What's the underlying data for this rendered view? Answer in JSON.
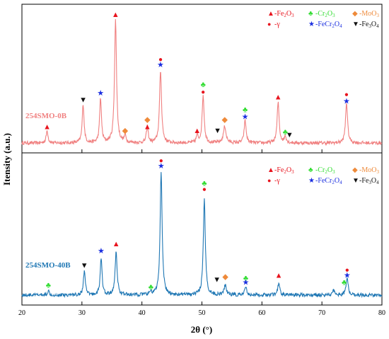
{
  "chart_data": [
    {
      "type": "line",
      "panel": "top",
      "sample_label": "254SMO-0B",
      "color": "#f08080",
      "xlim": [
        20,
        80
      ],
      "x_ticks": [
        20,
        30,
        40,
        50,
        60,
        70,
        80
      ],
      "xlabel": "2θ (°)",
      "ylabel": "Itensity (a.u.)",
      "baseline": 0.04,
      "noise": 0.012,
      "peaks": [
        {
          "x": 24.2,
          "height": 0.09,
          "width": 0.18
        },
        {
          "x": 30.2,
          "height": 0.28,
          "width": 0.18
        },
        {
          "x": 33.1,
          "height": 0.32,
          "width": 0.18
        },
        {
          "x": 35.6,
          "height": 0.88,
          "width": 0.2
        },
        {
          "x": 37.2,
          "height": 0.05,
          "width": 0.18
        },
        {
          "x": 40.9,
          "height": 0.12,
          "width": 0.18
        },
        {
          "x": 43.1,
          "height": 0.52,
          "width": 0.2
        },
        {
          "x": 49.2,
          "height": 0.05,
          "width": 0.18
        },
        {
          "x": 50.2,
          "height": 0.34,
          "width": 0.2
        },
        {
          "x": 53.8,
          "height": 0.12,
          "width": 0.25
        },
        {
          "x": 57.2,
          "height": 0.16,
          "width": 0.2
        },
        {
          "x": 62.7,
          "height": 0.29,
          "width": 0.2
        },
        {
          "x": 63.9,
          "height": 0.05,
          "width": 0.18
        },
        {
          "x": 74.1,
          "height": 0.29,
          "width": 0.2
        }
      ],
      "markers": [
        {
          "type": "fe2o3",
          "x": 24.2,
          "y": 0.14
        },
        {
          "type": "fe3o4",
          "x": 30.2,
          "y": 0.33
        },
        {
          "type": "fecr2o4",
          "x": 33.1,
          "y": 0.38
        },
        {
          "type": "fe2o3",
          "x": 35.6,
          "y": 0.94
        },
        {
          "type": "moo3",
          "x": 37.2,
          "y": 0.11
        },
        {
          "type": "moo3",
          "x": 40.9,
          "y": 0.19
        },
        {
          "type": "fe2o3",
          "x": 40.9,
          "y": 0.14
        },
        {
          "type": "gamma",
          "x": 43.1,
          "y": 0.62
        },
        {
          "type": "fecr2o4",
          "x": 43.1,
          "y": 0.58
        },
        {
          "type": "fe2o3",
          "x": 49.2,
          "y": 0.11
        },
        {
          "type": "cr2o3",
          "x": 50.2,
          "y": 0.44
        },
        {
          "type": "gamma",
          "x": 50.2,
          "y": 0.39
        },
        {
          "type": "fe3o4",
          "x": 52.6,
          "y": 0.11
        },
        {
          "type": "moo3",
          "x": 53.8,
          "y": 0.19
        },
        {
          "type": "cr2o3",
          "x": 57.2,
          "y": 0.26
        },
        {
          "type": "fecr2o4",
          "x": 57.2,
          "y": 0.21
        },
        {
          "type": "fe2o3",
          "x": 62.7,
          "y": 0.35
        },
        {
          "type": "cr2o3",
          "x": 63.9,
          "y": 0.1
        },
        {
          "type": "fe3o4",
          "x": 64.6,
          "y": 0.08
        },
        {
          "type": "gamma",
          "x": 74.1,
          "y": 0.37
        },
        {
          "type": "fecr2o4",
          "x": 74.1,
          "y": 0.32
        }
      ]
    },
    {
      "type": "line",
      "panel": "bottom",
      "sample_label": "254SMO-40B",
      "color": "#1f77b4",
      "xlim": [
        20,
        80
      ],
      "x_ticks": [
        20,
        30,
        40,
        50,
        60,
        70,
        80
      ],
      "xlabel": "2θ (°)",
      "ylabel": "Itensity (a.u.)",
      "baseline": 0.04,
      "noise": 0.012,
      "peaks": [
        {
          "x": 24.4,
          "height": 0.03,
          "width": 0.18
        },
        {
          "x": 30.4,
          "height": 0.17,
          "width": 0.18
        },
        {
          "x": 33.2,
          "height": 0.26,
          "width": 0.18
        },
        {
          "x": 35.7,
          "height": 0.3,
          "width": 0.2
        },
        {
          "x": 41.5,
          "height": 0.02,
          "width": 0.18
        },
        {
          "x": 43.2,
          "height": 0.85,
          "width": 0.2
        },
        {
          "x": 50.4,
          "height": 0.66,
          "width": 0.2
        },
        {
          "x": 53.9,
          "height": 0.07,
          "width": 0.22
        },
        {
          "x": 57.3,
          "height": 0.05,
          "width": 0.2
        },
        {
          "x": 62.8,
          "height": 0.08,
          "width": 0.2
        },
        {
          "x": 71.9,
          "height": 0.04,
          "width": 0.18
        },
        {
          "x": 74.2,
          "height": 0.12,
          "width": 0.2
        }
      ],
      "markers": [
        {
          "type": "cr2o3",
          "x": 24.4,
          "y": 0.09
        },
        {
          "type": "fe3o4",
          "x": 30.4,
          "y": 0.23
        },
        {
          "type": "fecr2o4",
          "x": 33.2,
          "y": 0.33
        },
        {
          "type": "fe2o3",
          "x": 35.7,
          "y": 0.38
        },
        {
          "type": "cr2o3",
          "x": 41.5,
          "y": 0.08
        },
        {
          "type": "gamma",
          "x": 43.2,
          "y": 0.96
        },
        {
          "type": "fecr2o4",
          "x": 43.2,
          "y": 0.92
        },
        {
          "type": "cr2o3",
          "x": 50.4,
          "y": 0.8
        },
        {
          "type": "gamma",
          "x": 50.4,
          "y": 0.76
        },
        {
          "type": "fe3o4",
          "x": 52.5,
          "y": 0.13
        },
        {
          "type": "moo3",
          "x": 53.9,
          "y": 0.15
        },
        {
          "type": "cr2o3",
          "x": 57.3,
          "y": 0.14
        },
        {
          "type": "fecr2o4",
          "x": 57.3,
          "y": 0.11
        },
        {
          "type": "fe2o3",
          "x": 62.8,
          "y": 0.16
        },
        {
          "type": "cr2o3",
          "x": 73.7,
          "y": 0.11
        },
        {
          "type": "gamma",
          "x": 74.2,
          "y": 0.2
        },
        {
          "type": "fecr2o4",
          "x": 74.2,
          "y": 0.16
        }
      ]
    }
  ],
  "legend": {
    "placement": "top-right",
    "items": [
      {
        "type": "fe2o3",
        "glyph": "▲",
        "base": "-Fe",
        "sub1": "2",
        "mid": "O",
        "sub2": "3",
        "color": "#e8141e"
      },
      {
        "type": "cr2o3",
        "glyph": "♣",
        "base": "-Cr",
        "sub1": "2",
        "mid": "O",
        "sub2": "3",
        "color": "#33dd33"
      },
      {
        "type": "moo3",
        "glyph": "◆",
        "base": "-MoO",
        "sub1": "",
        "mid": "",
        "sub2": "3",
        "color": "#ee8a3a"
      },
      {
        "type": "gamma",
        "glyph": "●",
        "base": "-γ",
        "sub1": "",
        "mid": "",
        "sub2": "",
        "color": "#e8141e"
      },
      {
        "type": "fecr2o4",
        "glyph": "★",
        "base": "-FeCr",
        "sub1": "2",
        "mid": "O",
        "sub2": "4",
        "color": "#1a2ee0"
      },
      {
        "type": "fe3o4",
        "glyph": "▼",
        "base": "-Fe",
        "sub1": "3",
        "mid": "O",
        "sub2": "4",
        "color": "#111111"
      }
    ]
  }
}
